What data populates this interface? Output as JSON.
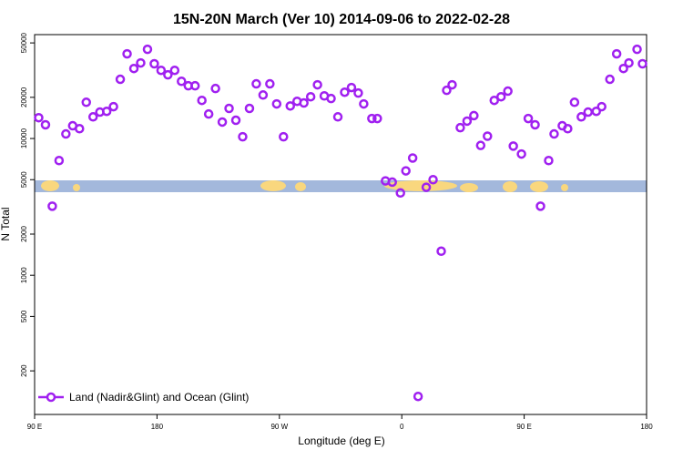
{
  "chart_data": {
    "type": "scatter",
    "title": "15N-20N March (Ver 10)   2014-09-06 to 2022-02-28",
    "xlabel": "Longitude (deg E)",
    "ylabel": "N Total",
    "x": [
      93,
      98,
      103,
      108,
      113,
      118,
      123,
      128,
      133,
      138,
      143,
      148,
      153,
      158,
      163,
      168,
      173,
      178,
      183,
      188,
      193,
      198,
      203,
      208,
      213,
      218,
      223,
      228,
      233,
      238,
      243,
      248,
      253,
      258,
      263,
      268,
      273,
      278,
      283,
      288,
      293,
      298,
      303,
      308,
      313,
      318,
      323,
      328,
      332,
      338,
      342,
      348,
      353,
      359,
      363,
      368,
      372,
      378,
      383,
      389,
      393,
      397,
      403,
      408,
      413,
      418,
      423,
      428,
      433,
      438,
      442,
      448,
      453,
      458,
      462,
      468,
      472,
      478,
      482,
      487,
      492,
      497,
      503,
      507,
      513,
      518,
      523,
      527,
      533,
      537
    ],
    "series": [
      {
        "name": "Land (Nadir&Glint) and Ocean (Glint)",
        "color": "#a020f0",
        "values": [
          14200,
          12600,
          3200,
          6900,
          10800,
          12400,
          11800,
          18400,
          14400,
          15600,
          15800,
          17100,
          27100,
          41600,
          32500,
          35700,
          44900,
          35200,
          31500,
          29200,
          31500,
          26200,
          24300,
          24300,
          19000,
          15100,
          23200,
          13200,
          16600,
          13600,
          10300,
          16600,
          25100,
          20800,
          25100,
          17900,
          10300,
          17300,
          18700,
          18200,
          20200,
          24700,
          20500,
          19600,
          14400,
          21800,
          23600,
          21500,
          17900,
          14000,
          14000,
          4900,
          4800,
          4000,
          5800,
          7200,
          130,
          4400,
          5000,
          1500,
          22500,
          24700,
          12000,
          13400,
          14700,
          8900,
          10400,
          19000,
          20200,
          22200,
          8800,
          7700,
          14000,
          12600,
          3200,
          6900,
          10800,
          12400,
          11800,
          18400,
          14400,
          15600,
          15800,
          17100,
          27100,
          41600,
          32500,
          35700,
          44900,
          35200
        ]
      }
    ],
    "xlim": [
      90,
      540
    ],
    "xticks": [
      {
        "value": 90,
        "label": "90 E"
      },
      180,
      {
        "value": 270,
        "label": "90 W"
      },
      {
        "value": 360,
        "label": "0"
      },
      {
        "value": 450,
        "label": "90 E"
      },
      {
        "value": 540,
        "label": "180"
      }
    ],
    "ylim": [
      96,
      57500
    ],
    "yscale": "log",
    "yticks": [
      200,
      500,
      1000,
      2000,
      5000,
      10000,
      20000,
      50000
    ],
    "legend": "lower left"
  }
}
